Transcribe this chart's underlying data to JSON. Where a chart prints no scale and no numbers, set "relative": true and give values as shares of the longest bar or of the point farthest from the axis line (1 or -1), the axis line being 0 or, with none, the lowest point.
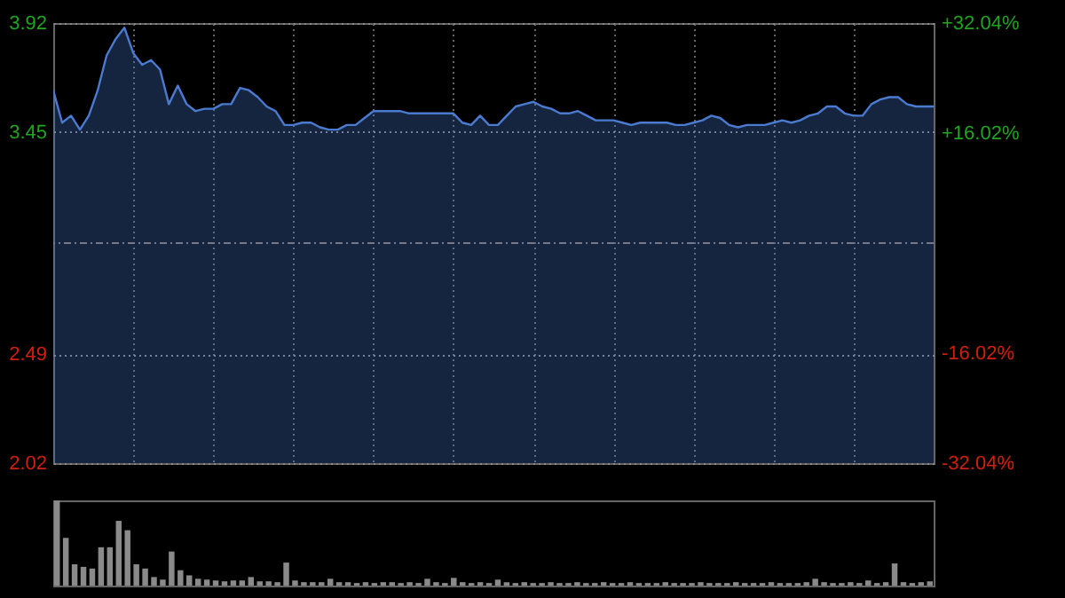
{
  "chart_data": [
    {
      "type": "area",
      "categories": [
        null,
        null,
        null,
        null,
        null,
        null,
        null,
        null,
        null,
        null,
        null,
        null,
        null,
        null,
        null,
        null,
        null,
        null,
        null,
        null,
        null,
        null,
        null,
        null,
        null,
        null,
        null,
        null,
        null,
        null,
        null,
        null,
        null,
        null,
        null,
        null,
        null,
        null,
        null,
        null,
        null,
        null,
        null,
        null,
        null,
        null,
        null,
        null,
        null,
        null,
        null,
        null,
        null,
        null,
        null,
        null,
        null,
        null,
        null,
        null,
        null,
        null,
        null,
        null,
        null,
        null,
        null,
        null,
        null,
        null,
        null,
        null,
        null,
        null,
        null,
        null,
        null,
        null,
        null,
        null,
        null,
        null,
        null,
        null,
        null,
        null,
        null,
        null,
        null,
        null,
        null,
        null,
        null,
        null,
        null,
        null,
        null,
        null,
        null,
        null
      ],
      "series": [
        {
          "color": "#4a7bd0",
          "values": [
            3.63,
            3.49,
            3.52,
            3.46,
            3.52,
            3.63,
            3.78,
            3.85,
            3.9,
            3.79,
            3.74,
            3.76,
            3.72,
            3.57,
            3.65,
            3.57,
            3.54,
            3.55,
            3.55,
            3.57,
            3.57,
            3.64,
            3.63,
            3.6,
            3.56,
            3.54,
            3.48,
            3.48,
            3.49,
            3.49,
            3.47,
            3.46,
            3.46,
            3.48,
            3.48,
            3.51,
            3.54,
            3.54,
            3.54,
            3.54,
            3.53,
            3.53,
            3.53,
            3.53,
            3.53,
            3.53,
            3.49,
            3.48,
            3.52,
            3.48,
            3.48,
            3.52,
            3.56,
            3.57,
            3.58,
            3.56,
            3.55,
            3.53,
            3.53,
            3.54,
            3.52,
            3.5,
            3.5,
            3.5,
            3.49,
            3.48,
            3.49,
            3.49,
            3.49,
            3.49,
            3.48,
            3.48,
            3.49,
            3.5,
            3.52,
            3.51,
            3.48,
            3.47,
            3.48,
            3.48,
            3.48,
            3.49,
            3.5,
            3.49,
            3.5,
            3.52,
            3.53,
            3.56,
            3.56,
            3.53,
            3.52,
            3.52,
            3.57,
            3.59,
            3.6,
            3.6,
            3.57,
            3.56,
            3.56,
            3.56
          ]
        }
      ],
      "ylim": [
        2.02,
        3.92
      ],
      "yticks": [
        3.92,
        3.45,
        2.49,
        2.02
      ],
      "y2lim": [
        -32.04,
        32.04
      ],
      "y2ticks": [
        {
          "value": 32.04,
          "label": "+32.04%"
        },
        {
          "value": 16.02,
          "label": "+16.02%"
        },
        {
          "value": -16.02,
          "label": "-16.02%"
        },
        {
          "value": -32.04,
          "label": "-32.04%"
        }
      ],
      "ref_lines": [
        {
          "axis": "y2",
          "value": 0,
          "line_style": "dashed"
        }
      ],
      "grid": true
    },
    {
      "type": "bar",
      "relative": true,
      "categories": [
        null,
        null,
        null,
        null,
        null,
        null,
        null,
        null,
        null,
        null,
        null,
        null,
        null,
        null,
        null,
        null,
        null,
        null,
        null,
        null,
        null,
        null,
        null,
        null,
        null,
        null,
        null,
        null,
        null,
        null,
        null,
        null,
        null,
        null,
        null,
        null,
        null,
        null,
        null,
        null,
        null,
        null,
        null,
        null,
        null,
        null,
        null,
        null,
        null,
        null,
        null,
        null,
        null,
        null,
        null,
        null,
        null,
        null,
        null,
        null,
        null,
        null,
        null,
        null,
        null,
        null,
        null,
        null,
        null,
        null,
        null,
        null,
        null,
        null,
        null,
        null,
        null,
        null,
        null,
        null,
        null,
        null,
        null,
        null,
        null,
        null,
        null,
        null,
        null,
        null,
        null,
        null,
        null,
        null,
        null,
        null,
        null,
        null,
        null,
        null
      ],
      "series": [
        {
          "color": "#8a8a8a",
          "values": [
            1.0,
            0.56,
            0.25,
            0.22,
            0.2,
            0.45,
            0.45,
            0.76,
            0.65,
            0.25,
            0.2,
            0.1,
            0.07,
            0.4,
            0.18,
            0.12,
            0.08,
            0.07,
            0.06,
            0.05,
            0.06,
            0.06,
            0.1,
            0.05,
            0.05,
            0.04,
            0.27,
            0.06,
            0.04,
            0.04,
            0.04,
            0.08,
            0.04,
            0.04,
            0.03,
            0.04,
            0.03,
            0.04,
            0.04,
            0.03,
            0.04,
            0.03,
            0.08,
            0.04,
            0.03,
            0.09,
            0.04,
            0.03,
            0.04,
            0.03,
            0.07,
            0.04,
            0.03,
            0.04,
            0.03,
            0.03,
            0.04,
            0.03,
            0.03,
            0.04,
            0.03,
            0.03,
            0.04,
            0.03,
            0.03,
            0.04,
            0.03,
            0.03,
            0.03,
            0.04,
            0.03,
            0.03,
            0.03,
            0.04,
            0.03,
            0.03,
            0.03,
            0.04,
            0.03,
            0.03,
            0.03,
            0.04,
            0.03,
            0.03,
            0.03,
            0.04,
            0.08,
            0.04,
            0.03,
            0.03,
            0.04,
            0.03,
            0.06,
            0.03,
            0.04,
            0.26,
            0.04,
            0.03,
            0.04,
            0.05
          ]
        }
      ]
    }
  ]
}
